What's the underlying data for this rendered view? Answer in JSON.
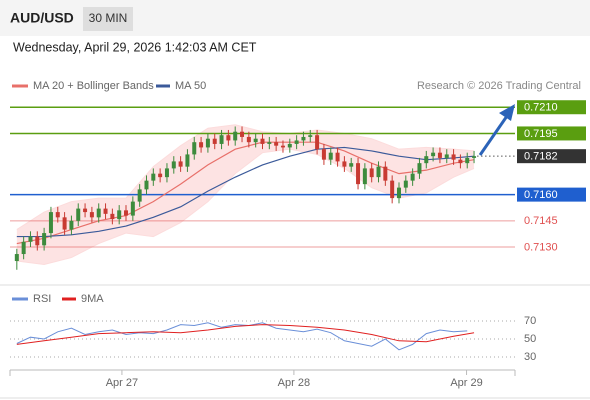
{
  "header": {
    "symbol": "AUD/USD",
    "interval": "30 MIN",
    "datetime": "Wednesday, April 29, 2026 1:42:03 AM CET"
  },
  "chart_data": [
    {
      "type": "candlestick",
      "source": "Research © 2026 Trading Central",
      "xlim": [
        -1,
        73
      ],
      "ylim": [
        0.711,
        0.7217
      ],
      "xticks": [
        {
          "value": 15.4,
          "label": "Apr 27"
        },
        {
          "value": 40.6,
          "label": "Apr 28"
        },
        {
          "value": 65.9,
          "label": "Apr 29"
        }
      ],
      "up_color": "#3d8b3d",
      "down_color": "#c83a32",
      "candles": {
        "open": [
          0.7122,
          0.7126,
          0.7133,
          0.7136,
          0.7131,
          0.7138,
          0.715,
          0.7147,
          0.714,
          0.7145,
          0.7152,
          0.715,
          0.7147,
          0.7152,
          0.7149,
          0.7146,
          0.7151,
          0.7148,
          0.7156,
          0.7163,
          0.7168,
          0.7172,
          0.717,
          0.7175,
          0.7179,
          0.7176,
          0.7183,
          0.719,
          0.7187,
          0.7192,
          0.7189,
          0.7194,
          0.7191,
          0.7196,
          0.7193,
          0.719,
          0.7192,
          0.7189,
          0.719,
          0.7188,
          0.7187,
          0.7189,
          0.7191,
          0.7193,
          0.7194,
          0.7186,
          0.718,
          0.7184,
          0.7179,
          0.7176,
          0.7178,
          0.7166,
          0.7175,
          0.717,
          0.7176,
          0.7168,
          0.7158,
          0.7164,
          0.7168,
          0.7172,
          0.7178,
          0.7182,
          0.7184,
          0.7181,
          0.7183,
          0.718,
          0.7178,
          0.7181
        ],
        "high": [
          0.7129,
          0.7136,
          0.7139,
          0.7139,
          0.7141,
          0.7153,
          0.7153,
          0.715,
          0.7148,
          0.7155,
          0.7155,
          0.7153,
          0.7155,
          0.7155,
          0.7152,
          0.7154,
          0.7154,
          0.7159,
          0.7166,
          0.7171,
          0.7175,
          0.7175,
          0.7178,
          0.7182,
          0.7182,
          0.7186,
          0.7193,
          0.7193,
          0.7195,
          0.7195,
          0.7197,
          0.7197,
          0.7199,
          0.7199,
          0.7196,
          0.7195,
          0.7195,
          0.7193,
          0.7193,
          0.7191,
          0.7192,
          0.7194,
          0.7196,
          0.7197,
          0.7197,
          0.7189,
          0.7187,
          0.7187,
          0.7182,
          0.7181,
          0.7181,
          0.7178,
          0.7178,
          0.7179,
          0.7179,
          0.7171,
          0.7167,
          0.7171,
          0.7175,
          0.7181,
          0.7185,
          0.7187,
          0.7187,
          0.7186,
          0.7186,
          0.7183,
          0.7184,
          0.7185
        ],
        "low": [
          0.7117,
          0.7123,
          0.713,
          0.7128,
          0.7128,
          0.7135,
          0.7144,
          0.7137,
          0.7137,
          0.7142,
          0.7147,
          0.7144,
          0.7144,
          0.7146,
          0.7143,
          0.7143,
          0.7145,
          0.7145,
          0.7153,
          0.716,
          0.7165,
          0.7167,
          0.7167,
          0.7172,
          0.7173,
          0.7173,
          0.718,
          0.7184,
          0.7184,
          0.7186,
          0.7186,
          0.7188,
          0.7188,
          0.719,
          0.7187,
          0.7187,
          0.7186,
          0.7186,
          0.7185,
          0.7184,
          0.7184,
          0.7186,
          0.7188,
          0.719,
          0.7183,
          0.7177,
          0.7177,
          0.7176,
          0.7173,
          0.7173,
          0.7163,
          0.7163,
          0.7167,
          0.7167,
          0.7165,
          0.7155,
          0.7155,
          0.7161,
          0.7165,
          0.7169,
          0.7175,
          0.7179,
          0.7178,
          0.7178,
          0.7177,
          0.7175,
          0.7175,
          0.7178
        ],
        "close": [
          0.7126,
          0.7133,
          0.7136,
          0.7131,
          0.7138,
          0.715,
          0.7147,
          0.714,
          0.7145,
          0.7152,
          0.715,
          0.7147,
          0.7152,
          0.7149,
          0.7146,
          0.7151,
          0.7148,
          0.7156,
          0.7163,
          0.7168,
          0.7172,
          0.717,
          0.7175,
          0.7179,
          0.7176,
          0.7183,
          0.719,
          0.7187,
          0.7192,
          0.7189,
          0.7194,
          0.7191,
          0.7196,
          0.7193,
          0.719,
          0.7192,
          0.7189,
          0.719,
          0.7188,
          0.7187,
          0.7189,
          0.7191,
          0.7193,
          0.7194,
          0.7186,
          0.718,
          0.7184,
          0.7179,
          0.7176,
          0.7178,
          0.7166,
          0.7175,
          0.717,
          0.7176,
          0.7168,
          0.7158,
          0.7164,
          0.7168,
          0.7172,
          0.7178,
          0.7182,
          0.7184,
          0.7181,
          0.7183,
          0.718,
          0.7178,
          0.7181,
          0.7182
        ]
      },
      "series": [
        {
          "name": "MA 20 + Bollinger Bands",
          "color": "#e8706a",
          "band_color": "#fcdcdc",
          "x": [
            0,
            4,
            8,
            12,
            16,
            20,
            24,
            28,
            32,
            36,
            40,
            44,
            48,
            52,
            56,
            60,
            64,
            67
          ],
          "values": [
            0.7132,
            0.7135,
            0.714,
            0.7145,
            0.7148,
            0.7156,
            0.7166,
            0.7177,
            0.7186,
            0.719,
            0.719,
            0.719,
            0.7185,
            0.7178,
            0.7172,
            0.7174,
            0.7178,
            0.718
          ],
          "upper": [
            0.714,
            0.715,
            0.7156,
            0.7158,
            0.7158,
            0.7176,
            0.7188,
            0.7198,
            0.72,
            0.7196,
            0.7195,
            0.7197,
            0.7195,
            0.7192,
            0.7186,
            0.7187,
            0.7186,
            0.7185
          ],
          "lower": [
            0.7122,
            0.712,
            0.7124,
            0.7132,
            0.7138,
            0.7136,
            0.7144,
            0.7156,
            0.7172,
            0.7184,
            0.7186,
            0.7183,
            0.7175,
            0.7164,
            0.7158,
            0.7161,
            0.717,
            0.7175
          ]
        },
        {
          "name": "MA 50",
          "color": "#3b5a9a",
          "x": [
            0,
            4,
            8,
            12,
            16,
            20,
            24,
            28,
            32,
            36,
            40,
            44,
            48,
            52,
            56,
            60,
            64,
            67
          ],
          "values": [
            0.7136,
            0.7136,
            0.7137,
            0.7139,
            0.7142,
            0.7147,
            0.7153,
            0.7162,
            0.717,
            0.7177,
            0.7182,
            0.7186,
            0.7187,
            0.7185,
            0.7182,
            0.718,
            0.7181,
            0.7182
          ]
        }
      ],
      "levels": [
        {
          "value": 0.721,
          "label": "0.7210",
          "color": "#5a9e10",
          "style": "box"
        },
        {
          "value": 0.7195,
          "color": "#5a9e10",
          "style": "box"
        },
        {
          "value": 0.7182,
          "color": "#333333",
          "style": "current"
        },
        {
          "value": 0.716,
          "label": "0.7160",
          "color": "#1f5fcf",
          "style": "box"
        },
        {
          "value": 0.7145,
          "color": "#e05050",
          "style": "text"
        },
        {
          "value": 0.713,
          "label": "0.7130",
          "color": "#e05050",
          "style": "text"
        }
      ]
    },
    {
      "type": "line",
      "xlim": [
        -1,
        73
      ],
      "ylim": [
        20,
        80
      ],
      "yticks": [
        70,
        50,
        30
      ],
      "grid": true,
      "series": [
        {
          "name": "RSI",
          "color": "#6a8fd8",
          "x": [
            0,
            2,
            4,
            6,
            8,
            10,
            12,
            14,
            16,
            18,
            20,
            22,
            24,
            26,
            28,
            30,
            32,
            34,
            36,
            38,
            40,
            42,
            44,
            46,
            48,
            50,
            52,
            54,
            56,
            58,
            60,
            62,
            64,
            66
          ],
          "values": [
            45,
            52,
            50,
            58,
            62,
            55,
            58,
            60,
            55,
            57,
            56,
            60,
            66,
            65,
            68,
            63,
            66,
            65,
            68,
            62,
            60,
            58,
            61,
            57,
            48,
            45,
            42,
            50,
            38,
            44,
            56,
            60,
            58,
            59
          ]
        },
        {
          "name": "9MA",
          "color": "#e02020",
          "x": [
            0,
            4,
            8,
            12,
            16,
            20,
            24,
            28,
            32,
            36,
            40,
            44,
            48,
            52,
            56,
            60,
            64,
            67
          ],
          "values": [
            44,
            48,
            52,
            56,
            57,
            58,
            57,
            60,
            64,
            66,
            65,
            63,
            60,
            55,
            48,
            47,
            53,
            57
          ]
        }
      ]
    }
  ]
}
